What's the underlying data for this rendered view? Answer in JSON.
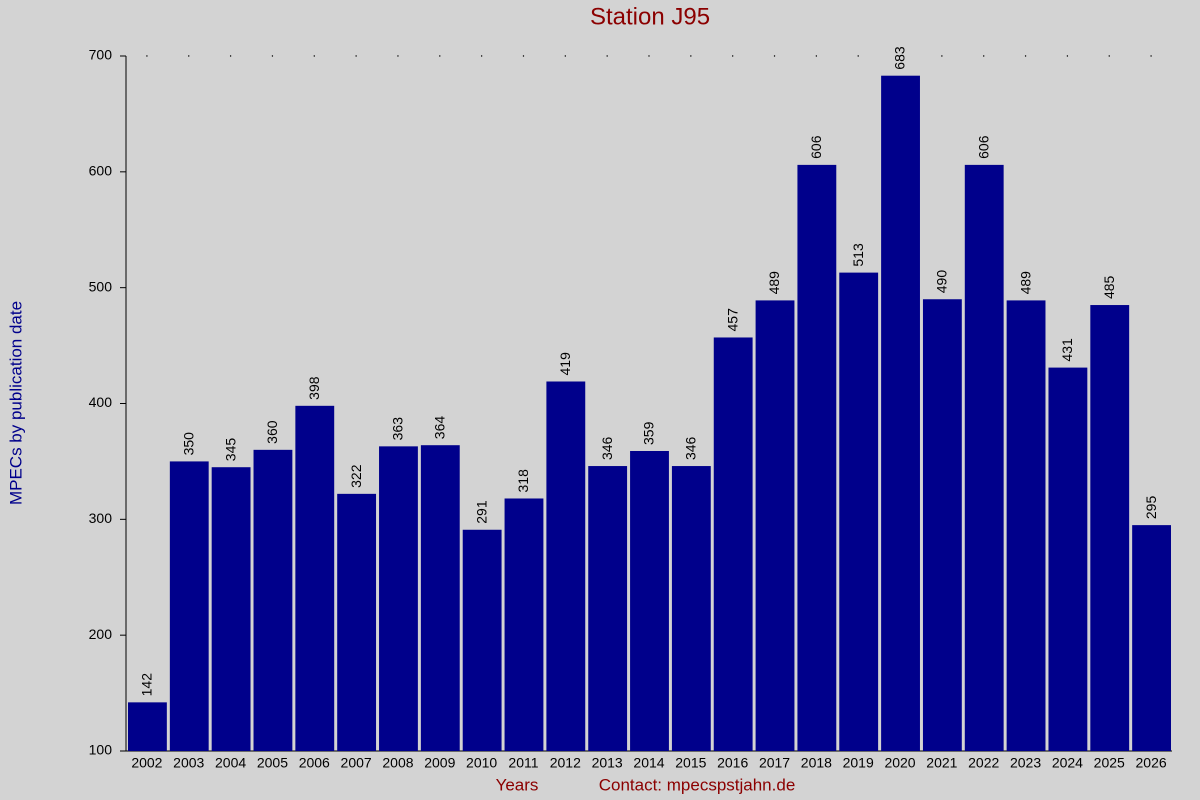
{
  "chart_data": {
    "type": "bar",
    "title": "Station J95",
    "x_label": "Years",
    "y_label": "MPECs by publication date",
    "contact": "Contact: mpecspstjahn.de",
    "categories": [
      "2002",
      "2003",
      "2004",
      "2005",
      "2006",
      "2007",
      "2008",
      "2009",
      "2010",
      "2011",
      "2012",
      "2013",
      "2014",
      "2015",
      "2016",
      "2017",
      "2018",
      "2019",
      "2020",
      "2021",
      "2022",
      "2023",
      "2024",
      "2025",
      "2026"
    ],
    "values": [
      142,
      350,
      345,
      360,
      398,
      322,
      363,
      364,
      291,
      318,
      419,
      346,
      359,
      346,
      457,
      489,
      606,
      513,
      683,
      490,
      606,
      489,
      431,
      485,
      295
    ],
    "color": "#00008b",
    "ylim": [
      100,
      700
    ],
    "yticks": [
      100,
      200,
      300,
      400,
      500,
      600,
      700
    ]
  }
}
